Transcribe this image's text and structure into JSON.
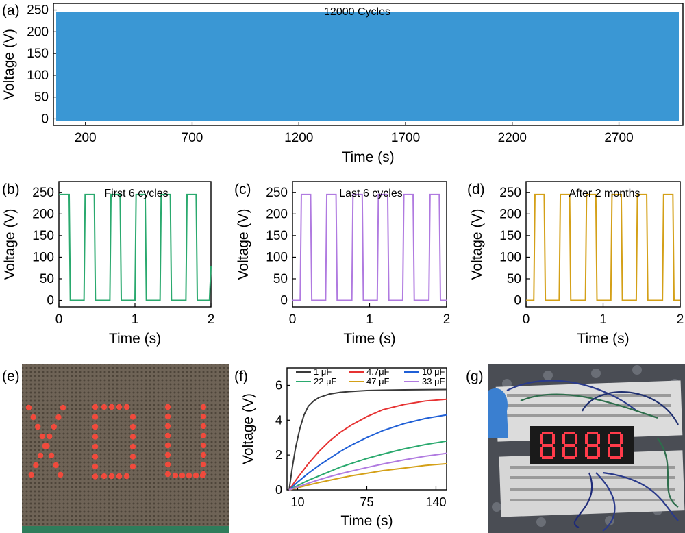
{
  "panels": {
    "a": {
      "label": "(a)"
    },
    "b": {
      "label": "(b)"
    },
    "c": {
      "label": "(c)"
    },
    "d": {
      "label": "(d)"
    },
    "e": {
      "label": "(e)",
      "image": "red-led-array-photo",
      "text": "XDU"
    },
    "f": {
      "label": "(f)"
    },
    "g": {
      "label": "(g)",
      "image": "seven-segment-display-breadboard-photo",
      "display": "8888"
    }
  },
  "chart_data": [
    {
      "id": "a",
      "type": "area",
      "title": "12000 Cycles",
      "xlabel": "Time (s)",
      "ylabel": "Voltage (V)",
      "xticks": [
        200,
        700,
        1200,
        1700,
        2200,
        2700
      ],
      "yticks": [
        0,
        50,
        100,
        150,
        200,
        250
      ],
      "xlim": [
        50,
        3000
      ],
      "ylim": [
        -15,
        265
      ],
      "fill_range": [
        -5,
        245
      ],
      "color": "#3a97d4"
    },
    {
      "id": "b",
      "type": "line",
      "title": "First 6 cycles",
      "xlabel": "Time (s)",
      "ylabel": "Voltage (V)",
      "xticks": [
        0,
        1,
        2
      ],
      "yticks": [
        0,
        50,
        100,
        150,
        200,
        250
      ],
      "xlim": [
        0,
        2
      ],
      "ylim": [
        -15,
        275
      ],
      "color": "#2aa96e",
      "high": 245,
      "low": 0,
      "pulses": [
        [
          0,
          0.15
        ],
        [
          0.33,
          0.48
        ],
        [
          0.67,
          0.82
        ],
        [
          1.0,
          1.15
        ],
        [
          1.33,
          1.48
        ],
        [
          1.67,
          1.82
        ]
      ],
      "tail": [
        1.98,
        80
      ]
    },
    {
      "id": "c",
      "type": "line",
      "title": "Last 6 cycles",
      "xlabel": "Time (s)",
      "ylabel": "Voltage (V)",
      "xticks": [
        0,
        1,
        2
      ],
      "yticks": [
        0,
        50,
        100,
        150,
        200,
        250
      ],
      "xlim": [
        0,
        2
      ],
      "ylim": [
        -15,
        275
      ],
      "color": "#b07ae0",
      "high": 245,
      "low": 0,
      "pulses": [
        [
          0.1,
          0.25
        ],
        [
          0.43,
          0.58
        ],
        [
          0.77,
          0.92
        ],
        [
          1.1,
          1.25
        ],
        [
          1.43,
          1.58
        ],
        [
          1.77,
          1.92
        ]
      ],
      "tail": null
    },
    {
      "id": "d",
      "type": "line",
      "title": "After 2 months",
      "xlabel": "Time (s)",
      "ylabel": "Voltage (V)",
      "xticks": [
        0,
        1,
        2
      ],
      "yticks": [
        0,
        50,
        100,
        150,
        200,
        250
      ],
      "xlim": [
        0,
        2
      ],
      "ylim": [
        -15,
        275
      ],
      "color": "#d4a017",
      "high": 245,
      "low": 0,
      "pulses": [
        [
          0.1,
          0.25
        ],
        [
          0.43,
          0.58
        ],
        [
          0.77,
          0.92
        ],
        [
          1.1,
          1.25
        ],
        [
          1.43,
          1.58
        ],
        [
          1.77,
          1.92
        ]
      ],
      "tail": null
    },
    {
      "id": "f",
      "type": "line",
      "xlabel": "Time (s)",
      "ylabel": "Voltage (V)",
      "xticks": [
        10,
        75,
        140
      ],
      "yticks": [
        0,
        2,
        4,
        6
      ],
      "xlim": [
        0,
        150
      ],
      "ylim": [
        0,
        7
      ],
      "legend_position": "top",
      "series": [
        {
          "name": "1 μF",
          "color": "#3a3a3a",
          "x": [
            2,
            5,
            8,
            12,
            16,
            20,
            25,
            30,
            40,
            50,
            60,
            75,
            90,
            110,
            130,
            150
          ],
          "y": [
            0,
            1.3,
            2.4,
            3.5,
            4.3,
            4.8,
            5.1,
            5.3,
            5.5,
            5.6,
            5.65,
            5.7,
            5.72,
            5.74,
            5.75,
            5.76
          ]
        },
        {
          "name": "4.7μF",
          "color": "#e63232",
          "x": [
            2,
            10,
            20,
            30,
            40,
            50,
            60,
            75,
            90,
            110,
            130,
            150
          ],
          "y": [
            0,
            0.7,
            1.5,
            2.2,
            2.8,
            3.3,
            3.7,
            4.2,
            4.6,
            4.9,
            5.1,
            5.2
          ]
        },
        {
          "name": "10 μF",
          "color": "#1f5fd6",
          "x": [
            2,
            10,
            20,
            30,
            40,
            50,
            60,
            75,
            90,
            110,
            130,
            150
          ],
          "y": [
            0,
            0.45,
            0.95,
            1.4,
            1.8,
            2.2,
            2.55,
            3.0,
            3.4,
            3.8,
            4.1,
            4.3
          ]
        },
        {
          "name": "22 μF",
          "color": "#2aa96e",
          "x": [
            2,
            10,
            20,
            30,
            40,
            50,
            60,
            75,
            90,
            110,
            130,
            150
          ],
          "y": [
            0,
            0.25,
            0.55,
            0.8,
            1.05,
            1.3,
            1.5,
            1.8,
            2.05,
            2.35,
            2.6,
            2.8
          ]
        },
        {
          "name": "47 μF",
          "color": "#d4a017",
          "x": [
            2,
            10,
            20,
            30,
            40,
            50,
            60,
            75,
            90,
            110,
            130,
            150
          ],
          "y": [
            0,
            0.12,
            0.28,
            0.42,
            0.55,
            0.68,
            0.8,
            0.95,
            1.1,
            1.25,
            1.4,
            1.5
          ]
        },
        {
          "name": "33 μF",
          "color": "#b07ae0",
          "x": [
            2,
            10,
            20,
            30,
            40,
            50,
            60,
            75,
            90,
            110,
            130,
            150
          ],
          "y": [
            0,
            0.17,
            0.38,
            0.58,
            0.76,
            0.92,
            1.07,
            1.28,
            1.48,
            1.72,
            1.93,
            2.1
          ]
        }
      ]
    }
  ]
}
